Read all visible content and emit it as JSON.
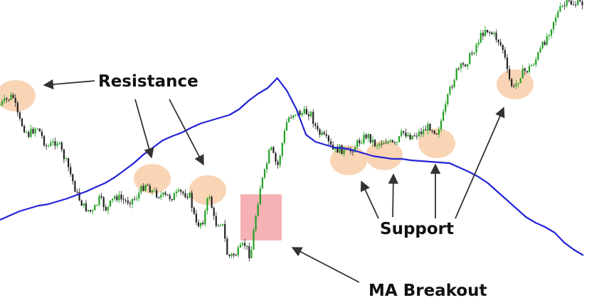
{
  "chart_data": {
    "type": "candlestick",
    "grid": false,
    "legend": "none",
    "series": [
      {
        "values": [
          120,
          126,
          132,
          136,
          140,
          142,
          146,
          150,
          155,
          160,
          166,
          172,
          180,
          190,
          200,
          212,
          222,
          232,
          238,
          243,
          250,
          256,
          260,
          264,
          268,
          276,
          288,
          298,
          306,
          320,
          302,
          276,
          240,
          230,
          226,
          222,
          221,
          218,
          214,
          210,
          208,
          206,
          206,
          204,
          203,
          202,
          201,
          200,
          194,
          188,
          181,
          172,
          160,
          148,
          136,
          124,
          116,
          110,
          102,
          88,
          78,
          70
        ]
      }
    ],
    "colors": {
      "bull_candle": "#22a022",
      "bear_candle": "#222222",
      "moving_average": "#2323d8",
      "highlight_circle": "#f7c79c",
      "breakout_box": "#f3a3a7",
      "arrow": "#333333"
    },
    "annotations": {
      "resistance": "Resistance",
      "support": "Support",
      "ma_breakout": "MA Breakout"
    }
  }
}
